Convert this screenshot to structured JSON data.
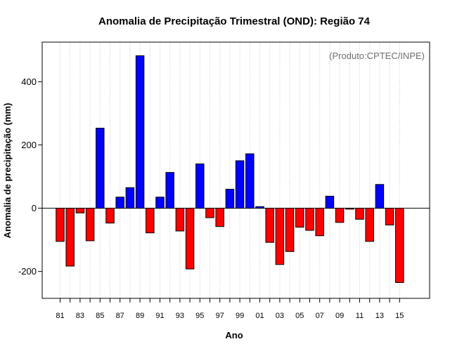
{
  "chart_data": {
    "type": "bar",
    "title": "Anomalia de Precipitação Trimestral (OND): Região 74",
    "xlabel": "Ano",
    "ylabel": "Anomalia de precipitação (mm)",
    "credit": "(Produto:CPTEC/INPE)",
    "ylim": [
      -285,
      525
    ],
    "yticks": [
      -200,
      0,
      200,
      400
    ],
    "categories": [
      "81",
      "82",
      "83",
      "84",
      "85",
      "86",
      "87",
      "88",
      "89",
      "90",
      "91",
      "92",
      "93",
      "94",
      "95",
      "96",
      "97",
      "98",
      "99",
      "00",
      "01",
      "02",
      "03",
      "04",
      "05",
      "06",
      "07",
      "08",
      "09",
      "10",
      "11",
      "12",
      "13",
      "14",
      "15"
    ],
    "values": [
      -105,
      -183,
      -15,
      -103,
      253,
      -47,
      35,
      65,
      482,
      -78,
      35,
      113,
      -72,
      -192,
      140,
      -30,
      -58,
      60,
      150,
      172,
      5,
      -108,
      -178,
      -137,
      -60,
      -70,
      -87,
      38,
      -45,
      -3,
      -35,
      -105,
      75,
      -53,
      -235
    ],
    "xtick_labels": [
      "81",
      "83",
      "85",
      "87",
      "89",
      "91",
      "93",
      "95",
      "97",
      "99",
      "01",
      "03",
      "05",
      "07",
      "09",
      "11",
      "13",
      "15"
    ],
    "xtick_years": [
      "81",
      "83",
      "85",
      "87",
      "89",
      "91",
      "93",
      "95",
      "97",
      "99",
      "01",
      "03",
      "05",
      "07",
      "09",
      "11",
      "13",
      "15"
    ],
    "colors": {
      "positive": "#0000ff",
      "negative": "#ff0000",
      "grid": "#c8c8c8",
      "axis": "#000000"
    }
  }
}
